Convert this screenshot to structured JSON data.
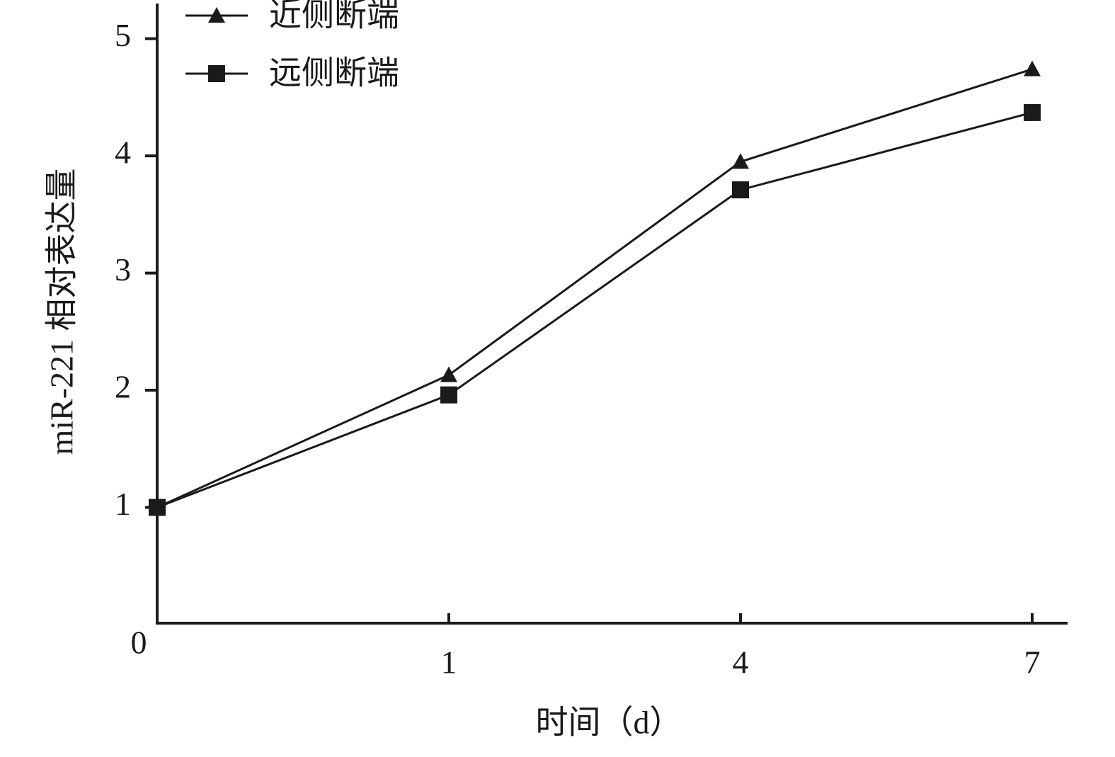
{
  "chart_data": {
    "type": "line",
    "categories": [
      "0",
      "1",
      "4",
      "7"
    ],
    "series": [
      {
        "name": "近侧断端",
        "color": "#1a1a1a",
        "marker": "triangle",
        "values": [
          1,
          2.13,
          3.95,
          4.74
        ]
      },
      {
        "name": "远侧断端",
        "color": "#1a1a1a",
        "marker": "square",
        "values": [
          1,
          1.96,
          3.71,
          4.37
        ]
      }
    ],
    "ylim": [
      0,
      5.3
    ],
    "yticks": [
      1,
      2,
      3,
      4,
      5
    ],
    "xlabel": "时间（d）",
    "ylabel": "miR-221 相对表达量",
    "legend": "top-left",
    "grid": false
  }
}
